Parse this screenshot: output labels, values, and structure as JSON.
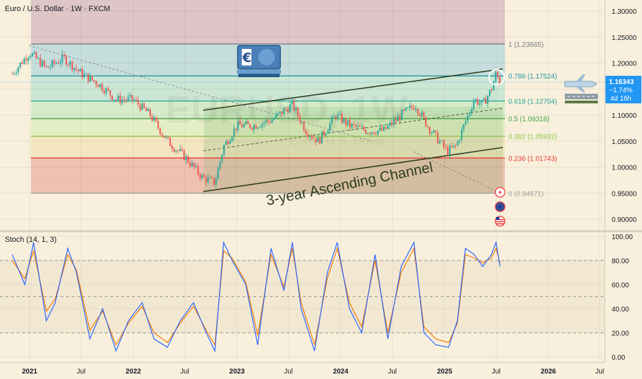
{
  "header": {
    "title": "Euro / U.S. Dollar · 1W · FXCM"
  },
  "watermark": {
    "symbol": "EURUSD, 1W",
    "name": "Euro / U.S. Dollar"
  },
  "price_tag": {
    "price": "1.16343",
    "change": "−1.74%",
    "countdown": "4d 16h",
    "color": "#2196f3"
  },
  "channel_label": "3-year Ascending Channel",
  "currency_badge": "€",
  "icons": [
    "euro-banknote-icon",
    "lightning-icon",
    "eu-flag-icon",
    "us-flag-icon",
    "airplane-icon"
  ],
  "stoch_label": "Stoch (14, 1, 3)",
  "x_labels": [
    "2021",
    "Jul",
    "2022",
    "Jul",
    "2023",
    "Jul",
    "2024",
    "Jul",
    "2025",
    "Jul",
    "2026",
    "Jul"
  ],
  "chart_data": [
    {
      "type": "line",
      "title": "Euro / U.S. Dollar · 1W · FXCM",
      "chart_subtype": "candlestick",
      "ylim": [
        0.88,
        1.315
      ],
      "y_ticks": [
        "1.30000",
        "1.25000",
        "1.20000",
        "1.15000",
        "1.10000",
        "1.05000",
        "1.00000",
        "0.95000",
        "0.90000"
      ],
      "y_tick_values": [
        1.3,
        1.25,
        1.2,
        1.15,
        1.1,
        1.05,
        1.0,
        0.95,
        0.9
      ],
      "x_ticks": [
        "2021",
        "Jul",
        "2022",
        "Jul",
        "2023",
        "Jul",
        "2024",
        "Jul",
        "2025",
        "Jul",
        "2026",
        "Jul"
      ],
      "series": [
        {
          "x": [
            "2020-11-01",
            "2021-01-01",
            "2021-03-01",
            "2021-05-01",
            "2021-07-01",
            "2021-09-01",
            "2021-11-01",
            "2022-01-01",
            "2022-03-01",
            "2022-05-01",
            "2022-07-01",
            "2022-09-01",
            "2022-10-15",
            "2022-11-15",
            "2023-01-01",
            "2023-03-01",
            "2023-05-01",
            "2023-07-15",
            "2023-09-01",
            "2023-10-15",
            "2023-12-15",
            "2024-02-01",
            "2024-04-01",
            "2024-06-01",
            "2024-08-01",
            "2024-09-20",
            "2024-11-01",
            "2025-01-10",
            "2025-02-10",
            "2025-03-10",
            "2025-04-15",
            "2025-05-15",
            "2025-06-15",
            "2025-07-01",
            "2025-07-15"
          ],
          "values": [
            1.18,
            1.22,
            1.19,
            1.21,
            1.18,
            1.16,
            1.13,
            1.13,
            1.1,
            1.05,
            1.02,
            0.98,
            0.97,
            1.04,
            1.08,
            1.08,
            1.09,
            1.12,
            1.07,
            1.05,
            1.1,
            1.08,
            1.07,
            1.07,
            1.1,
            1.12,
            1.08,
            1.03,
            1.04,
            1.08,
            1.13,
            1.12,
            1.15,
            1.18,
            1.163
          ]
        }
      ],
      "fibonacci": [
        {
          "label": "1 (1.23665)",
          "value": 1.23665,
          "color": "#787b86"
        },
        {
          "label": "0.786 (1.17524)",
          "value": 1.17524,
          "color": "#2196a0"
        },
        {
          "label": "0.618 (1.12704)",
          "value": 1.12704,
          "color": "#26a69a"
        },
        {
          "label": "0.5 (1.09318)",
          "value": 1.09318,
          "color": "#43a047"
        },
        {
          "label": "0.382 (1.05932)",
          "value": 1.05932,
          "color": "#8bc34a"
        },
        {
          "label": "0.236 (1.01743)",
          "value": 1.01743,
          "color": "#e53935"
        },
        {
          "label": "0 (0.94971)",
          "value": 0.94971,
          "color": "#9e9e9e"
        }
      ],
      "annotations": [
        "3-year Ascending Channel"
      ],
      "last_price": 1.16343,
      "change_pct": "−1.74%",
      "candle_colors": {
        "up": "#26a69a",
        "down": "#ef5350"
      }
    },
    {
      "type": "line",
      "title": "Stoch (14, 1, 3)",
      "ylim": [
        0,
        100
      ],
      "y_ticks": [
        "100.00",
        "80.00",
        "60.00",
        "40.00",
        "20.00",
        "0.00"
      ],
      "y_tick_values": [
        100,
        80,
        60,
        40,
        20,
        0
      ],
      "series": [
        {
          "name": "%K",
          "color": "#2962ff",
          "x": [
            "2020-11-01",
            "2020-12-15",
            "2021-01-15",
            "2021-03-01",
            "2021-04-01",
            "2021-05-15",
            "2021-06-15",
            "2021-08-01",
            "2021-09-15",
            "2021-11-01",
            "2021-12-15",
            "2022-02-01",
            "2022-03-15",
            "2022-05-01",
            "2022-06-15",
            "2022-08-01",
            "2022-09-15",
            "2022-10-15",
            "2022-11-15",
            "2022-12-15",
            "2023-02-01",
            "2023-03-15",
            "2023-05-01",
            "2023-06-15",
            "2023-07-15",
            "2023-08-15",
            "2023-10-01",
            "2023-11-15",
            "2023-12-20",
            "2024-02-01",
            "2024-03-15",
            "2024-05-01",
            "2024-06-15",
            "2024-08-01",
            "2024-09-15",
            "2024-10-20",
            "2024-12-01",
            "2025-01-15",
            "2025-02-15",
            "2025-03-15",
            "2025-04-15",
            "2025-05-15",
            "2025-06-15",
            "2025-07-01",
            "2025-07-15"
          ],
          "values": [
            85,
            60,
            95,
            30,
            45,
            90,
            70,
            15,
            40,
            5,
            30,
            45,
            15,
            8,
            30,
            45,
            20,
            5,
            95,
            80,
            60,
            10,
            90,
            55,
            95,
            40,
            5,
            70,
            95,
            40,
            20,
            85,
            15,
            75,
            95,
            20,
            10,
            8,
            30,
            90,
            85,
            75,
            85,
            95,
            75
          ]
        },
        {
          "name": "%D",
          "color": "#f57c00",
          "x": [
            "2020-11-01",
            "2020-12-15",
            "2021-01-15",
            "2021-03-01",
            "2021-04-01",
            "2021-05-15",
            "2021-06-15",
            "2021-08-01",
            "2021-09-15",
            "2021-11-01",
            "2021-12-15",
            "2022-02-01",
            "2022-03-15",
            "2022-05-01",
            "2022-06-15",
            "2022-08-01",
            "2022-09-15",
            "2022-10-15",
            "2022-11-15",
            "2022-12-15",
            "2023-02-01",
            "2023-03-15",
            "2023-05-01",
            "2023-06-15",
            "2023-07-15",
            "2023-08-15",
            "2023-10-01",
            "2023-11-15",
            "2023-12-20",
            "2024-02-01",
            "2024-03-15",
            "2024-05-01",
            "2024-06-15",
            "2024-08-01",
            "2024-09-15",
            "2024-10-20",
            "2024-12-01",
            "2025-01-15",
            "2025-02-15",
            "2025-03-15",
            "2025-04-15",
            "2025-05-15",
            "2025-06-15",
            "2025-07-01",
            "2025-07-15"
          ],
          "values": [
            80,
            65,
            88,
            38,
            48,
            85,
            72,
            22,
            38,
            10,
            28,
            42,
            20,
            12,
            28,
            42,
            22,
            10,
            88,
            82,
            62,
            18,
            85,
            58,
            90,
            45,
            10,
            65,
            90,
            45,
            25,
            80,
            20,
            70,
            90,
            25,
            15,
            12,
            28,
            85,
            82,
            78,
            82,
            90,
            78
          ]
        }
      ]
    }
  ]
}
